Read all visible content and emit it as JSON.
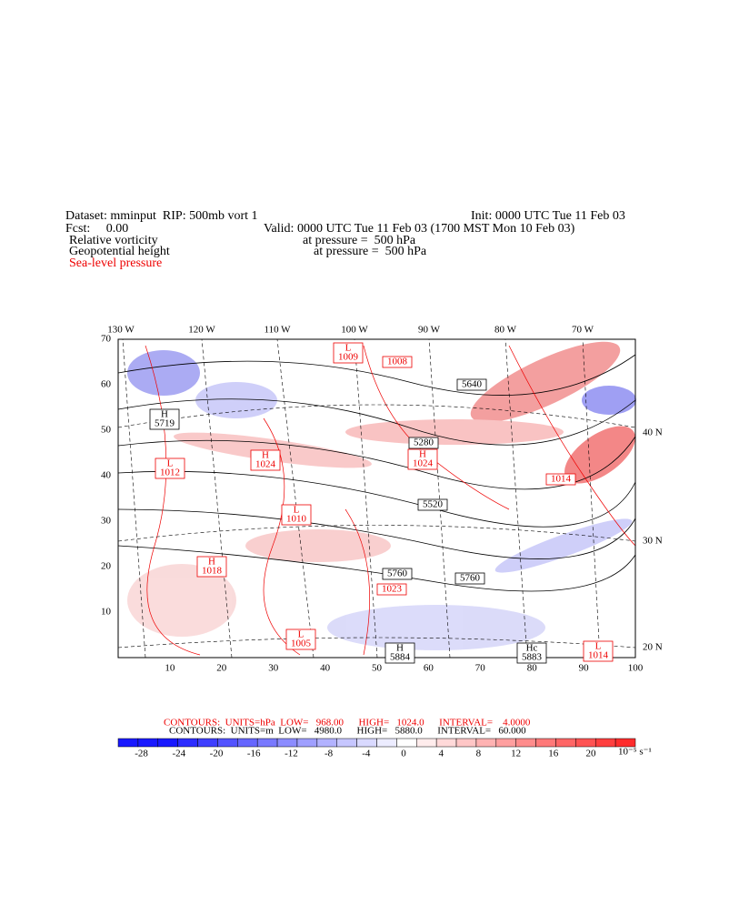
{
  "header": {
    "dataset": "Dataset: mminput  RIP: 500mb vort 1",
    "init": "Init: 0000 UTC Tue 11 Feb 03",
    "fcst": "Fcst:     0.00",
    "valid": "Valid: 0000 UTC Tue 11 Feb 03 (1700 MST Mon 10 Feb 03)",
    "fields": [
      {
        "name": "Relative vorticity",
        "level": "at pressure =  500 hPa"
      },
      {
        "name": "Geopotential height",
        "level": "at pressure =  500 hPa"
      },
      {
        "name": "Sea-level pressure"
      }
    ]
  },
  "map": {
    "lon_labels": [
      "130 W",
      "120 W",
      "110 W",
      "100 W",
      "90 W",
      "80 W",
      "70 W"
    ],
    "lat_labels": [
      "40 N",
      "30 N",
      "20 N"
    ],
    "x_grid": [
      10,
      20,
      30,
      40,
      50,
      60,
      70,
      80,
      90,
      100
    ],
    "y_grid": [
      10,
      20,
      30,
      40,
      50,
      60,
      70
    ],
    "centers": [
      {
        "mark": "L",
        "value": "1009"
      },
      {
        "mark": "",
        "value": "1008"
      },
      {
        "mark": "",
        "value": "5640"
      },
      {
        "mark": "H",
        "value": "5719"
      },
      {
        "mark": "",
        "value": "5280"
      },
      {
        "mark": "H",
        "value": "1024"
      },
      {
        "mark": "L",
        "value": "1012"
      },
      {
        "mark": "H",
        "value": "1024"
      },
      {
        "mark": "",
        "value": "1014"
      },
      {
        "mark": "L",
        "value": "1010"
      },
      {
        "mark": "",
        "value": "5520"
      },
      {
        "mark": "H",
        "value": "1018"
      },
      {
        "mark": "",
        "value": "5760"
      },
      {
        "mark": "",
        "value": "1023"
      },
      {
        "mark": "",
        "value": "5760"
      },
      {
        "mark": "L",
        "value": "1005"
      },
      {
        "mark": "H",
        "value": "5884"
      },
      {
        "mark": "Hc",
        "value": "5883"
      },
      {
        "mark": "L",
        "value": "1014"
      }
    ]
  },
  "legend": {
    "slp": "CONTOURS:  UNITS=hPa  LOW=   968.00      HIGH=   1024.0      INTERVAL=    4.0000",
    "hgt": "CONTOURS:  UNITS=m  LOW=   4980.0      HIGH=   5880.0      INTERVAL=   60.000",
    "colorbar_ticks": [
      -28,
      -24,
      -20,
      -16,
      -12,
      -8,
      -4,
      0,
      4,
      8,
      12,
      16,
      20
    ],
    "units": "10⁻⁵ s⁻¹"
  }
}
